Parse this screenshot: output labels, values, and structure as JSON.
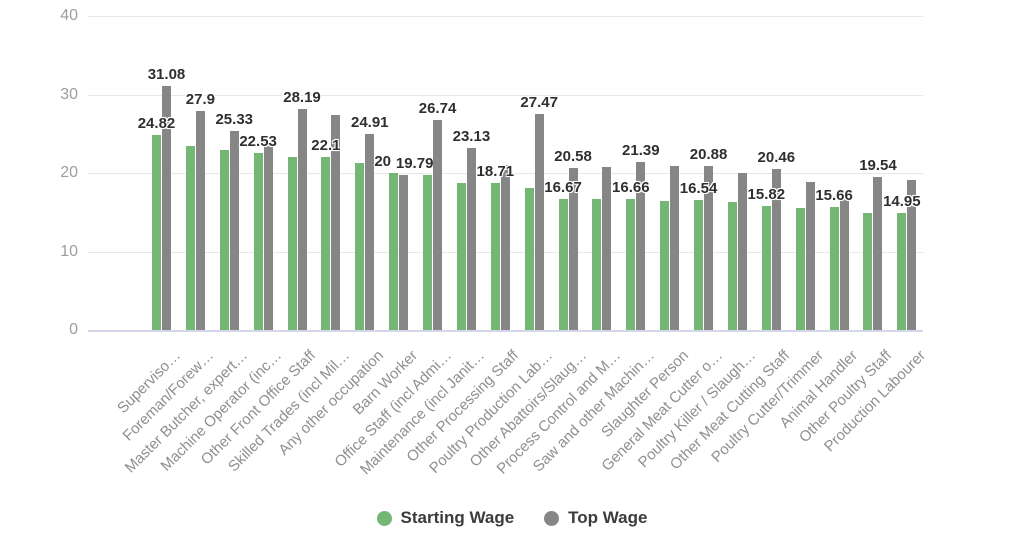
{
  "chart_data": {
    "type": "bar",
    "title": "",
    "xlabel": "",
    "ylabel": "",
    "ylim": [
      0,
      40
    ],
    "yticks": [
      0,
      10,
      20,
      30,
      40
    ],
    "grid": true,
    "legend_position": "bottom",
    "categories": [
      "Superviso…",
      "Foreman/Forew…",
      "Master Butcher, expert…",
      "Machine Operator (inc…",
      "Other Front Office Staff",
      "Skilled Trades (incl Mil…",
      "Any other occupation",
      "Barn Worker",
      "Office Staff (incl Admi…",
      "Maintenance (incl Janit…",
      "Other Processing Staff",
      "Poultry Production Lab…",
      "Other Abattoirs/Slaug…",
      "Process Control and M…",
      "Saw and other Machin…",
      "Slaughter Person",
      "General Meat Cutter o…",
      "Poultry Killer / Slaugh…",
      "Other Meat Cutting Staff",
      "Poultry Cutter/Trimmer",
      "Animal Handler",
      "Other Poultry Staff",
      "Production Labourer"
    ],
    "series": [
      {
        "name": "Starting Wage",
        "color": "#74b674",
        "values": [
          24.82,
          23.4,
          22.9,
          22.53,
          22.0,
          22.1,
          21.3,
          20,
          19.7,
          18.7,
          18.71,
          18.1,
          16.67,
          16.7,
          16.66,
          16.4,
          16.54,
          16.3,
          15.82,
          15.5,
          15.66,
          14.9,
          14.95
        ],
        "labels": [
          "24.82",
          null,
          null,
          "22.53",
          null,
          "22.1",
          null,
          "20",
          null,
          null,
          "18.71",
          null,
          "16.67",
          null,
          "16.66",
          null,
          "16.54",
          null,
          "15.82",
          null,
          "15.66",
          null,
          "14.95"
        ]
      },
      {
        "name": "Top Wage",
        "color": "#868686",
        "values": [
          31.08,
          27.9,
          25.33,
          23.9,
          28.19,
          27.4,
          24.91,
          19.79,
          26.74,
          23.13,
          21.0,
          27.47,
          20.58,
          20.8,
          21.39,
          20.9,
          20.88,
          20.0,
          20.46,
          18.9,
          17.0,
          19.54,
          19.1
        ],
        "labels": [
          "31.08",
          "27.9",
          "25.33",
          null,
          "28.19",
          null,
          "24.91",
          "19.79",
          "26.74",
          "23.13",
          null,
          "27.47",
          "20.58",
          null,
          "21.39",
          null,
          "20.88",
          null,
          "20.46",
          null,
          null,
          "19.54",
          null
        ]
      }
    ]
  },
  "legend": {
    "starting_wage": "Starting Wage",
    "top_wage": "Top Wage"
  }
}
